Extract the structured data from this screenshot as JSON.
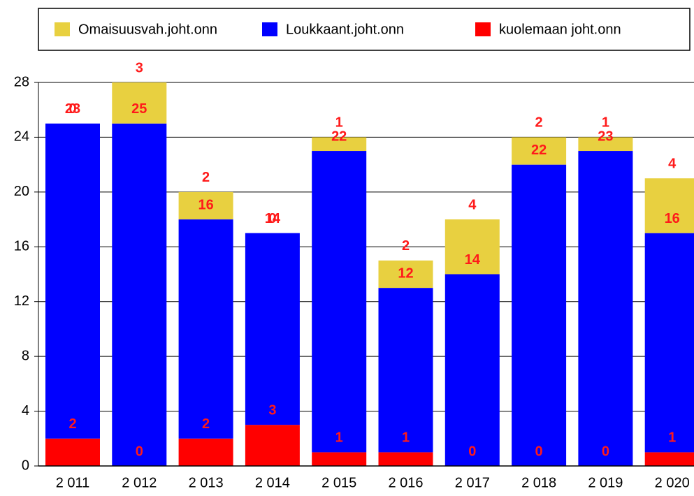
{
  "chart_data": {
    "type": "bar",
    "stacked": true,
    "categories": [
      "2 011",
      "2 012",
      "2 013",
      "2 014",
      "2 015",
      "2 016",
      "2 017",
      "2 018",
      "2 019",
      "2 020"
    ],
    "series": [
      {
        "name": "kuolemaan joht.onn",
        "color": "#ff0000",
        "values": [
          2,
          0,
          2,
          3,
          1,
          1,
          0,
          0,
          0,
          1
        ]
      },
      {
        "name": "Loukkaant.joht.onn",
        "color": "#0000ff",
        "values": [
          23,
          25,
          16,
          14,
          22,
          12,
          14,
          22,
          23,
          16
        ]
      },
      {
        "name": "Omaisuusvah.joht.onn",
        "color": "#e8d040",
        "values": [
          0,
          3,
          2,
          0,
          1,
          2,
          4,
          2,
          1,
          4
        ]
      }
    ],
    "ylim": [
      0,
      28
    ],
    "yticks": [
      0,
      4,
      8,
      12,
      16,
      20,
      24,
      28
    ],
    "grid": true
  }
}
